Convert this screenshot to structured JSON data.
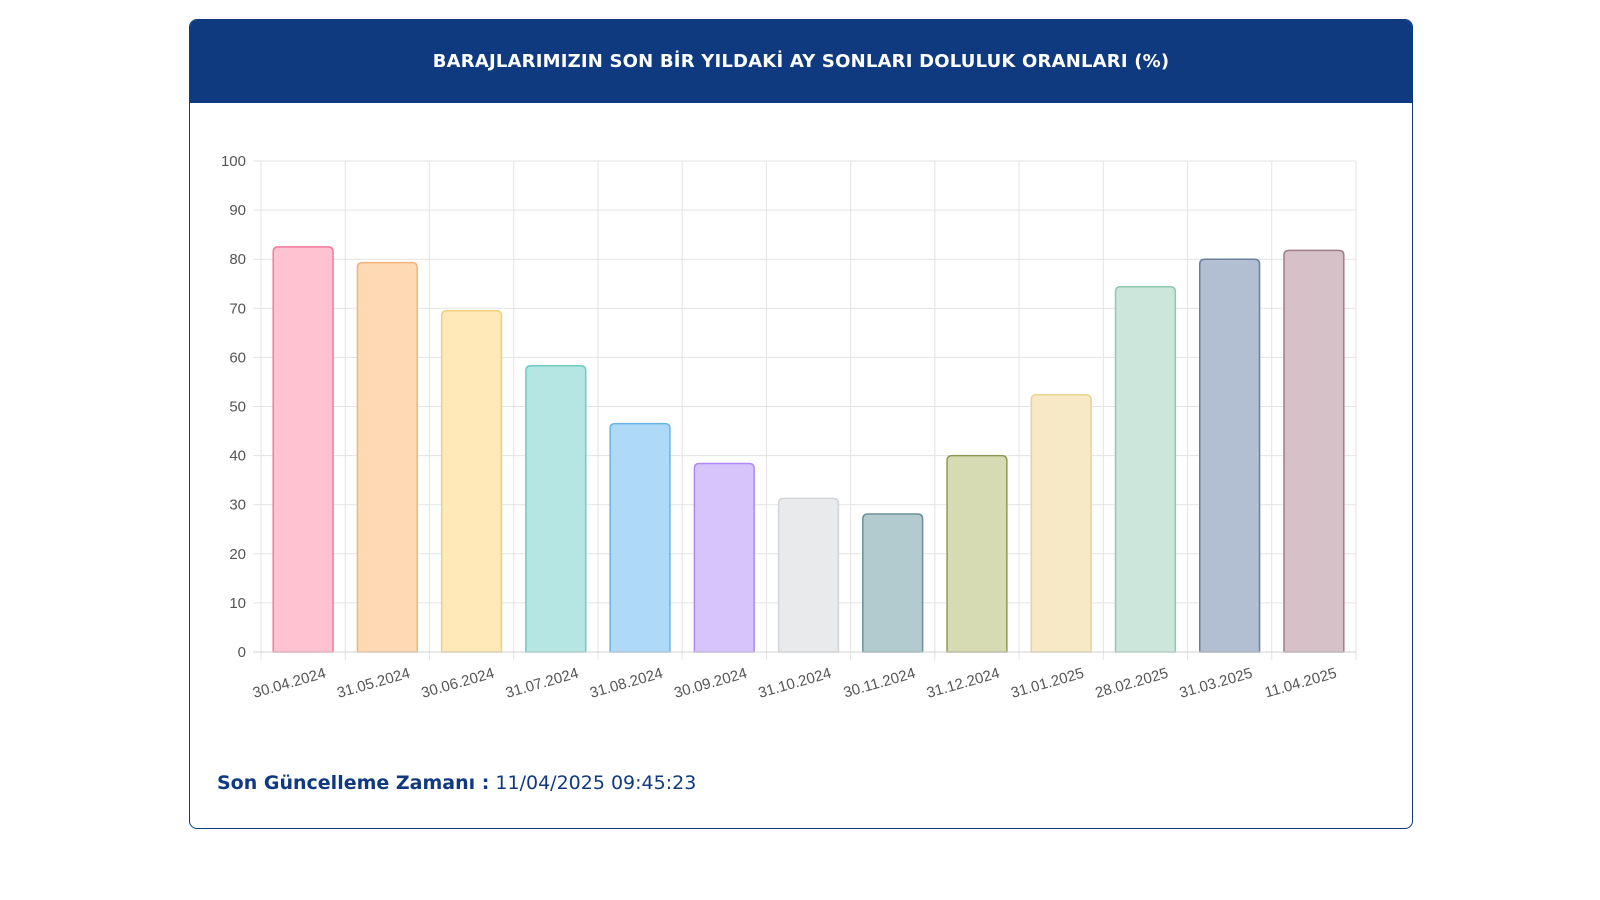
{
  "header": {
    "title": "BARAJLARIMIZIN SON BİR YILDAKİ AY SONLARI DOLULUK ORANLARI (%)"
  },
  "footer": {
    "label": "Son Güncelleme Zamanı :",
    "value": "11/04/2025 09:45:23"
  },
  "chart_data": {
    "type": "bar",
    "title": "BARAJLARIMIZIN SON BİR YILDAKİ AY SONLARI DOLULUK ORANLARI (%)",
    "xlabel": "",
    "ylabel": "",
    "ylim": [
      0,
      100
    ],
    "yticks": [
      0,
      10,
      20,
      30,
      40,
      50,
      60,
      70,
      80,
      90,
      100
    ],
    "grid": true,
    "legend": "none",
    "categories": [
      "30.04.2024",
      "31.05.2024",
      "30.06.2024",
      "31.07.2024",
      "31.08.2024",
      "30.09.2024",
      "31.10.2024",
      "30.11.2024",
      "31.12.2024",
      "31.01.2025",
      "28.02.2025",
      "31.03.2025",
      "11.04.2025"
    ],
    "values": [
      82.5,
      79.3,
      69.5,
      58.3,
      46.5,
      38.4,
      31.3,
      28.1,
      40.0,
      52.4,
      74.4,
      80.0,
      81.8
    ],
    "fill_colors": [
      "#ffc2d1",
      "#ffd9b3",
      "#ffe9b8",
      "#b5e6e3",
      "#afdaf7",
      "#d6c5fa",
      "#e9eaec",
      "#b1cbce",
      "#d6dbb3",
      "#f7e8c6",
      "#cde6dc",
      "#b2bfd2",
      "#d7c1c8"
    ],
    "border_colors": [
      "#f47a9b",
      "#f5b27a",
      "#f3cf7c",
      "#6fcac4",
      "#6db3e4",
      "#ad8bf2",
      "#d3d5d9",
      "#6a9196",
      "#8f9a55",
      "#ecd296",
      "#8fc8b1",
      "#6a7f9d",
      "#9f7c88"
    ]
  }
}
